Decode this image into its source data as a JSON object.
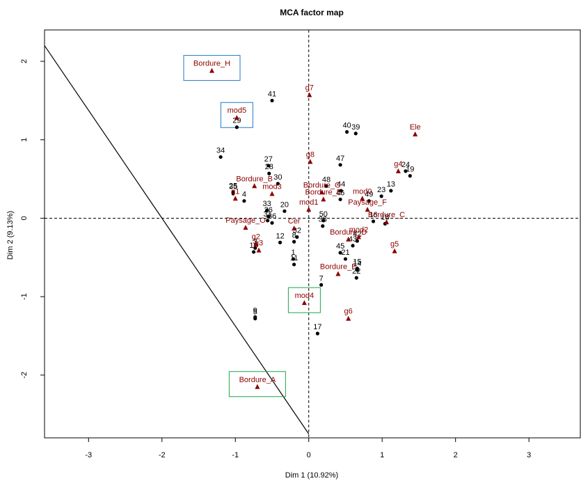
{
  "chart_data": {
    "type": "scatter",
    "title": "MCA factor map",
    "xlabel": "Dim 1 (10.92%)",
    "ylabel": "Dim 2 (9.13%)",
    "xlim": [
      -3.6,
      3.7
    ],
    "ylim": [
      -2.8,
      2.4
    ],
    "xticks": [
      -3,
      -2,
      -1,
      0,
      1,
      2,
      3
    ],
    "yticks": [
      -2,
      -1,
      0,
      1,
      2
    ],
    "colors": {
      "individuals": "#000000",
      "categories": "#8B0000",
      "box_blue": "#1f77c8",
      "box_green": "#19a64a"
    },
    "individuals": [
      {
        "label": "41",
        "x": -0.5,
        "y": 1.5
      },
      {
        "label": "40",
        "x": 0.52,
        "y": 1.1
      },
      {
        "label": "39",
        "x": 0.64,
        "y": 1.08
      },
      {
        "label": "29",
        "x": -0.98,
        "y": 1.16
      },
      {
        "label": "34",
        "x": -1.2,
        "y": 0.78
      },
      {
        "label": "27",
        "x": -0.55,
        "y": 0.67
      },
      {
        "label": "28",
        "x": -0.54,
        "y": 0.57
      },
      {
        "label": "30",
        "x": -0.42,
        "y": 0.44
      },
      {
        "label": "47",
        "x": 0.43,
        "y": 0.68
      },
      {
        "label": "48",
        "x": 0.24,
        "y": 0.41
      },
      {
        "label": "44",
        "x": 0.44,
        "y": 0.35
      },
      {
        "label": "46",
        "x": 0.43,
        "y": 0.24
      },
      {
        "label": "25",
        "x": -1.03,
        "y": 0.33
      },
      {
        "label": "35",
        "x": -1.03,
        "y": 0.32
      },
      {
        "label": "4",
        "x": -0.88,
        "y": 0.22
      },
      {
        "label": "33",
        "x": -0.57,
        "y": 0.1
      },
      {
        "label": "20",
        "x": -0.33,
        "y": 0.09
      },
      {
        "label": "26",
        "x": -0.55,
        "y": 0.02
      },
      {
        "label": "31",
        "x": -0.56,
        "y": -0.03
      },
      {
        "label": "36",
        "x": -0.5,
        "y": -0.06
      },
      {
        "label": "50",
        "x": 0.2,
        "y": -0.03
      },
      {
        "label": "38",
        "x": 0.19,
        "y": -0.1
      },
      {
        "label": "49",
        "x": 0.82,
        "y": 0.22
      },
      {
        "label": "23",
        "x": 0.99,
        "y": 0.28
      },
      {
        "label": "13",
        "x": 1.12,
        "y": 0.35
      },
      {
        "label": "24",
        "x": 1.32,
        "y": 0.6
      },
      {
        "label": "19",
        "x": 1.38,
        "y": 0.54
      },
      {
        "label": "16",
        "x": 0.88,
        "y": -0.04
      },
      {
        "label": "18",
        "x": 1.04,
        "y": -0.07
      },
      {
        "label": "32",
        "x": -0.16,
        "y": -0.24
      },
      {
        "label": "8",
        "x": -0.2,
        "y": -0.3
      },
      {
        "label": "12",
        "x": -0.39,
        "y": -0.31
      },
      {
        "label": "42",
        "x": 0.66,
        "y": -0.29
      },
      {
        "label": "43",
        "x": 0.6,
        "y": -0.35
      },
      {
        "label": "45",
        "x": 0.43,
        "y": -0.44
      },
      {
        "label": "21",
        "x": 0.5,
        "y": -0.52
      },
      {
        "label": "1",
        "x": -0.21,
        "y": -0.52
      },
      {
        "label": "11",
        "x": -0.2,
        "y": -0.59
      },
      {
        "label": "15",
        "x": 0.66,
        "y": -0.64
      },
      {
        "label": "14",
        "x": 0.66,
        "y": -0.66
      },
      {
        "label": "22",
        "x": 0.65,
        "y": -0.76
      },
      {
        "label": "10",
        "x": -0.75,
        "y": -0.43
      },
      {
        "label": "3",
        "x": -0.73,
        "y": -0.38
      },
      {
        "label": "7",
        "x": 0.17,
        "y": -0.85
      },
      {
        "label": "9",
        "x": -0.73,
        "y": -1.26
      },
      {
        "label": "5",
        "x": -0.73,
        "y": -1.28
      },
      {
        "label": "17",
        "x": 0.12,
        "y": -1.47
      }
    ],
    "categories": [
      {
        "label": "Bordure_H",
        "x": -1.32,
        "y": 1.88
      },
      {
        "label": "mod5",
        "x": -0.98,
        "y": 1.28
      },
      {
        "label": "g7",
        "x": 0.01,
        "y": 1.57
      },
      {
        "label": "Ele",
        "x": 1.45,
        "y": 1.07
      },
      {
        "label": "g8",
        "x": 0.02,
        "y": 0.72
      },
      {
        "label": "g4",
        "x": 1.22,
        "y": 0.6
      },
      {
        "label": "Bordure_B",
        "x": -0.74,
        "y": 0.41
      },
      {
        "label": "mod3",
        "x": -0.5,
        "y": 0.31
      },
      {
        "label": "Bordure_G",
        "x": 0.18,
        "y": 0.33
      },
      {
        "label": "Bordure_E",
        "x": 0.2,
        "y": 0.24
      },
      {
        "label": "mod0",
        "x": 0.73,
        "y": 0.25
      },
      {
        "label": "g1",
        "x": -1.0,
        "y": 0.25
      },
      {
        "label": "mod1",
        "x": 0.0,
        "y": 0.11
      },
      {
        "label": "Paysage_F",
        "x": 0.8,
        "y": 0.11
      },
      {
        "label": "Bordure_C",
        "x": 1.06,
        "y": -0.05
      },
      {
        "label": "Paysage_O",
        "x": -0.86,
        "y": -0.12
      },
      {
        "label": "Cer",
        "x": -0.2,
        "y": -0.13
      },
      {
        "label": "g2",
        "x": -0.72,
        "y": -0.33
      },
      {
        "label": "g3",
        "x": -0.68,
        "y": -0.41
      },
      {
        "label": "Bordure_D",
        "x": 0.54,
        "y": -0.27
      },
      {
        "label": "mod2",
        "x": 0.68,
        "y": -0.24
      },
      {
        "label": "g5",
        "x": 1.17,
        "y": -0.42
      },
      {
        "label": "Bordure_F",
        "x": 0.4,
        "y": -0.71
      },
      {
        "label": "mod4",
        "x": -0.06,
        "y": -1.08
      },
      {
        "label": "g6",
        "x": 0.54,
        "y": -1.28
      },
      {
        "label": "Bordure_A",
        "x": -0.7,
        "y": -2.15
      }
    ],
    "boxes": [
      {
        "label": "Bordure_H",
        "color": "blue"
      },
      {
        "label": "mod5",
        "color": "blue"
      },
      {
        "label": "mod4",
        "color": "green"
      },
      {
        "label": "Bordure_A",
        "color": "green"
      }
    ],
    "line": {
      "x": [
        -3.6,
        0.0
      ],
      "y": [
        2.2,
        -2.75
      ]
    },
    "reference_lines": {
      "x": 0,
      "y": 0,
      "style": "dashed"
    }
  }
}
